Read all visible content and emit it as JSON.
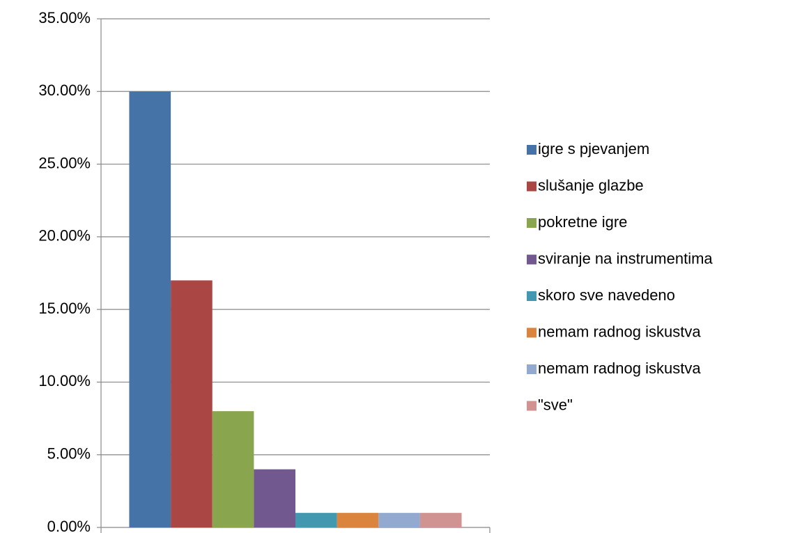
{
  "chart_data": {
    "type": "bar",
    "categories": [
      null
    ],
    "series": [
      {
        "name": "igre s pjevanjem",
        "color": "#4572a7",
        "values": [
          30
        ]
      },
      {
        "name": "slušanje glazbe",
        "color": "#aa4643",
        "values": [
          17
        ]
      },
      {
        "name": "pokretne igre",
        "color": "#89a54e",
        "values": [
          8
        ]
      },
      {
        "name": "sviranje na instrumentima",
        "color": "#71588f",
        "values": [
          4
        ]
      },
      {
        "name": "skoro sve navedeno",
        "color": "#4198af",
        "values": [
          1
        ]
      },
      {
        "name": "nemam radnog iskustva",
        "color": "#db843d",
        "values": [
          1
        ]
      },
      {
        "name": "nemam radnog iskustva",
        "color": "#93a9cf",
        "values": [
          1
        ]
      },
      {
        "name": "\"sve\"",
        "color": "#d19392",
        "values": [
          1
        ]
      }
    ],
    "ylim": [
      0,
      35
    ],
    "yticks": [
      {
        "value": 0,
        "label": "0.00%"
      },
      {
        "value": 5,
        "label": "5.00%"
      },
      {
        "value": 10,
        "label": "10.00%"
      },
      {
        "value": 15,
        "label": "15.00%"
      },
      {
        "value": 20,
        "label": "20.00%"
      },
      {
        "value": 25,
        "label": "25.00%"
      },
      {
        "value": 30,
        "label": "30.00%"
      },
      {
        "value": 35,
        "label": "35.00%"
      }
    ],
    "grid": true,
    "legend": "right"
  }
}
